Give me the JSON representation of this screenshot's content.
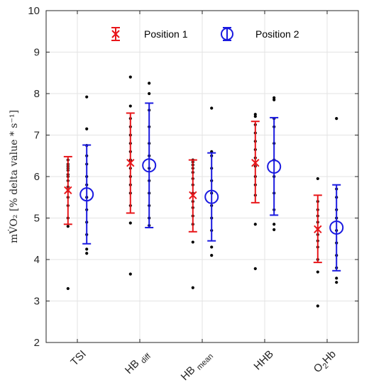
{
  "chart_data": {
    "type": "scatter",
    "ylabel": "mV̇O₂ [% delta value * s⁻¹]",
    "ylim": [
      2,
      10
    ],
    "yticks": [
      2,
      3,
      4,
      5,
      6,
      7,
      8,
      9,
      10
    ],
    "grid": true,
    "legend_placement": "top",
    "categories": [
      "TSI",
      "HB diff",
      "HB mean",
      "HHB",
      "O2Hb"
    ],
    "category_labels": [
      {
        "base": "TSI",
        "sub": "",
        "subPre": "",
        "post": ""
      },
      {
        "base": "HB",
        "sub": "diff",
        "subPre": "",
        "post": ""
      },
      {
        "base": "HB",
        "sub": "mean",
        "subPre": "",
        "post": ""
      },
      {
        "base": "HHB",
        "sub": "",
        "subPre": "",
        "post": ""
      },
      {
        "base": "O",
        "sub": "",
        "subPre": "2",
        "post": "Hb"
      }
    ],
    "series": [
      {
        "name": "Position 1",
        "color": "#e8161a",
        "marker": "x",
        "mean": [
          5.67,
          6.33,
          5.55,
          6.33,
          4.73
        ],
        "lower": [
          4.85,
          5.12,
          4.67,
          5.37,
          3.93
        ],
        "upper": [
          6.48,
          7.53,
          6.4,
          7.33,
          5.55
        ],
        "points": [
          [
            3.3,
            4.8,
            5.0,
            5.3,
            5.5,
            5.65,
            5.75,
            5.9,
            6.0,
            6.05,
            6.15,
            6.2,
            6.25,
            6.3,
            6.4
          ],
          [
            3.65,
            4.88,
            5.3,
            5.6,
            5.8,
            6.0,
            6.2,
            6.4,
            6.6,
            6.8,
            7.0,
            7.2,
            7.4,
            7.7,
            8.4
          ],
          [
            3.32,
            4.42,
            4.85,
            5.05,
            5.25,
            5.4,
            5.6,
            5.8,
            5.95,
            6.1,
            6.2,
            6.28,
            6.35,
            6.4
          ],
          [
            3.78,
            4.85,
            5.55,
            5.8,
            6.0,
            6.25,
            6.45,
            6.65,
            6.85,
            7.05,
            7.25,
            7.45,
            7.5
          ],
          [
            2.88,
            3.7,
            4.0,
            4.3,
            4.45,
            4.6,
            4.75,
            4.9,
            5.05,
            5.2,
            5.4,
            5.95
          ]
        ]
      },
      {
        "name": "Position 2",
        "color": "#1a1ae0",
        "marker": "o",
        "mean": [
          5.57,
          6.27,
          5.51,
          6.24,
          4.77
        ],
        "lower": [
          4.38,
          4.77,
          4.45,
          5.07,
          3.73
        ],
        "upper": [
          6.76,
          7.77,
          6.57,
          7.42,
          5.8
        ],
        "points": [
          [
            4.15,
            4.25,
            4.6,
            4.9,
            5.2,
            5.5,
            5.8,
            6.0,
            6.3,
            6.5,
            6.75,
            7.15,
            7.92
          ],
          [
            4.82,
            5.0,
            5.3,
            5.6,
            5.9,
            6.2,
            6.5,
            6.8,
            7.2,
            7.6,
            8.0,
            8.25
          ],
          [
            4.1,
            4.3,
            4.7,
            5.0,
            5.3,
            5.6,
            5.9,
            6.2,
            6.5,
            6.6,
            7.65
          ],
          [
            4.72,
            4.85,
            5.2,
            5.6,
            6.0,
            6.4,
            6.8,
            7.2,
            7.4,
            7.85,
            7.9
          ],
          [
            3.45,
            3.55,
            3.8,
            4.1,
            4.4,
            4.7,
            5.0,
            5.2,
            5.5,
            5.7,
            7.4
          ]
        ]
      }
    ]
  }
}
